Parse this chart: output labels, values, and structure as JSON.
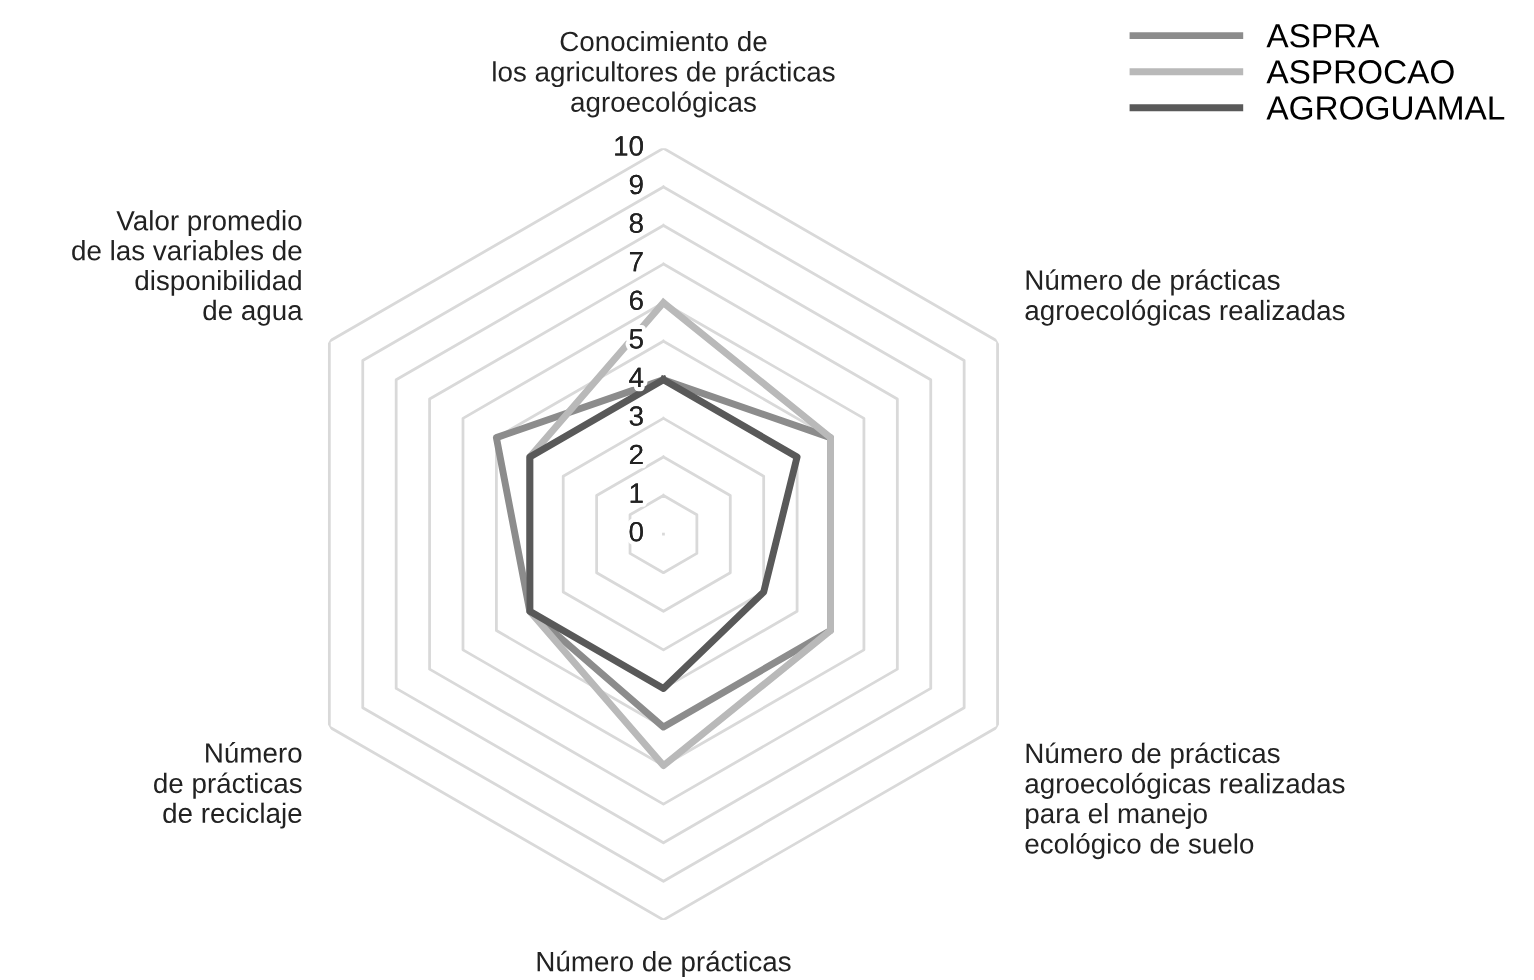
{
  "chart_data": {
    "type": "radar",
    "categories": [
      "Conocimiento de\nlos agricultores de prácticas\nagroecológicas",
      "Número de prácticas\nagroecológicas realizadas",
      "Número de prácticas\nagroecológicas realizadas\npara el manejo\necológico de suelo",
      "Número de prácticas",
      "Número\nde prácticas\nde reciclaje",
      "Valor promedio\nde las variables de\ndisponibilidad\nde agua"
    ],
    "series": [
      {
        "name": "ASPRA",
        "color": "#8c8c8c",
        "values": [
          4,
          5,
          5,
          5,
          4,
          5
        ]
      },
      {
        "name": "ASPROCAO",
        "color": "#b9b9b9",
        "values": [
          6,
          5,
          5,
          6,
          4,
          4
        ]
      },
      {
        "name": "AGROGUAMAL",
        "color": "#595959",
        "values": [
          4,
          4,
          3,
          4,
          4,
          4
        ]
      }
    ],
    "ylim": [
      0,
      10
    ],
    "yticks": [
      0,
      1,
      2,
      3,
      4,
      5,
      6,
      7,
      8,
      9,
      10
    ],
    "grid": true,
    "legend": "top right",
    "marker": "none",
    "line_style": "solid"
  }
}
